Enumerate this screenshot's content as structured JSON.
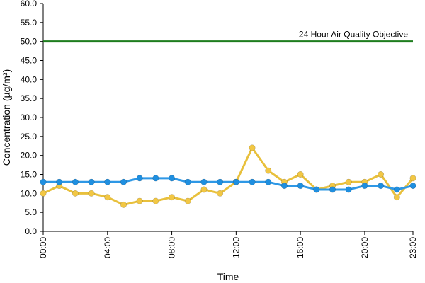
{
  "chart_data": {
    "type": "line",
    "xlabel": "Time",
    "ylabel": "Concentration (µg/m³)",
    "ylim": [
      0,
      60
    ],
    "yticks": [
      "0.0",
      "5.0",
      "10.0",
      "15.0",
      "20.0",
      "25.0",
      "30.0",
      "35.0",
      "40.0",
      "45.0",
      "50.0",
      "55.0",
      "60.0"
    ],
    "xlim": [
      0,
      23
    ],
    "xticks": [
      {
        "x": 0,
        "label": "00:00"
      },
      {
        "x": 4,
        "label": "04:00"
      },
      {
        "x": 8,
        "label": "08:00"
      },
      {
        "x": 12,
        "label": "12:00"
      },
      {
        "x": 16,
        "label": "16:00"
      },
      {
        "x": 20,
        "label": "20:00"
      },
      {
        "x": 23,
        "label": "23:00"
      }
    ],
    "grid": false,
    "x": [
      0,
      1,
      2,
      3,
      4,
      5,
      6,
      7,
      8,
      9,
      10,
      11,
      12,
      13,
      14,
      15,
      16,
      17,
      18,
      19,
      20,
      21,
      22,
      23
    ],
    "series": [
      {
        "color": "#f2c744",
        "line_color": "#e8c03c",
        "values": [
          10,
          12,
          10,
          10,
          9,
          7,
          8,
          8,
          9,
          8,
          11,
          10,
          13,
          22,
          16,
          13,
          15,
          11,
          12,
          13,
          13,
          15,
          9,
          14
        ]
      },
      {
        "color": "#1f8fe0",
        "line_color": "#2e98e6",
        "values": [
          13,
          13,
          13,
          13,
          13,
          13,
          14,
          14,
          14,
          13,
          13,
          13,
          13,
          13,
          13,
          12,
          12,
          11,
          11,
          11,
          12,
          12,
          11,
          12
        ]
      }
    ],
    "reference_line": {
      "value": 50,
      "label": "24 Hour Air Quality Objective",
      "color": "#1e7d1e"
    }
  }
}
